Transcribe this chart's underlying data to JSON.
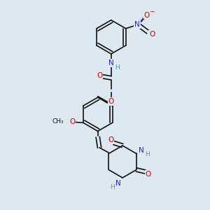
{
  "bg_color": "#dde8f0",
  "bond_color": "#111111",
  "bond_width": 1.2,
  "atom_colors": {
    "C": "#111111",
    "N": "#2222cc",
    "O": "#cc0000",
    "H": "#559999"
  },
  "font_size": 6.5,
  "fig_width": 3.0,
  "fig_height": 3.0,
  "dpi": 100
}
